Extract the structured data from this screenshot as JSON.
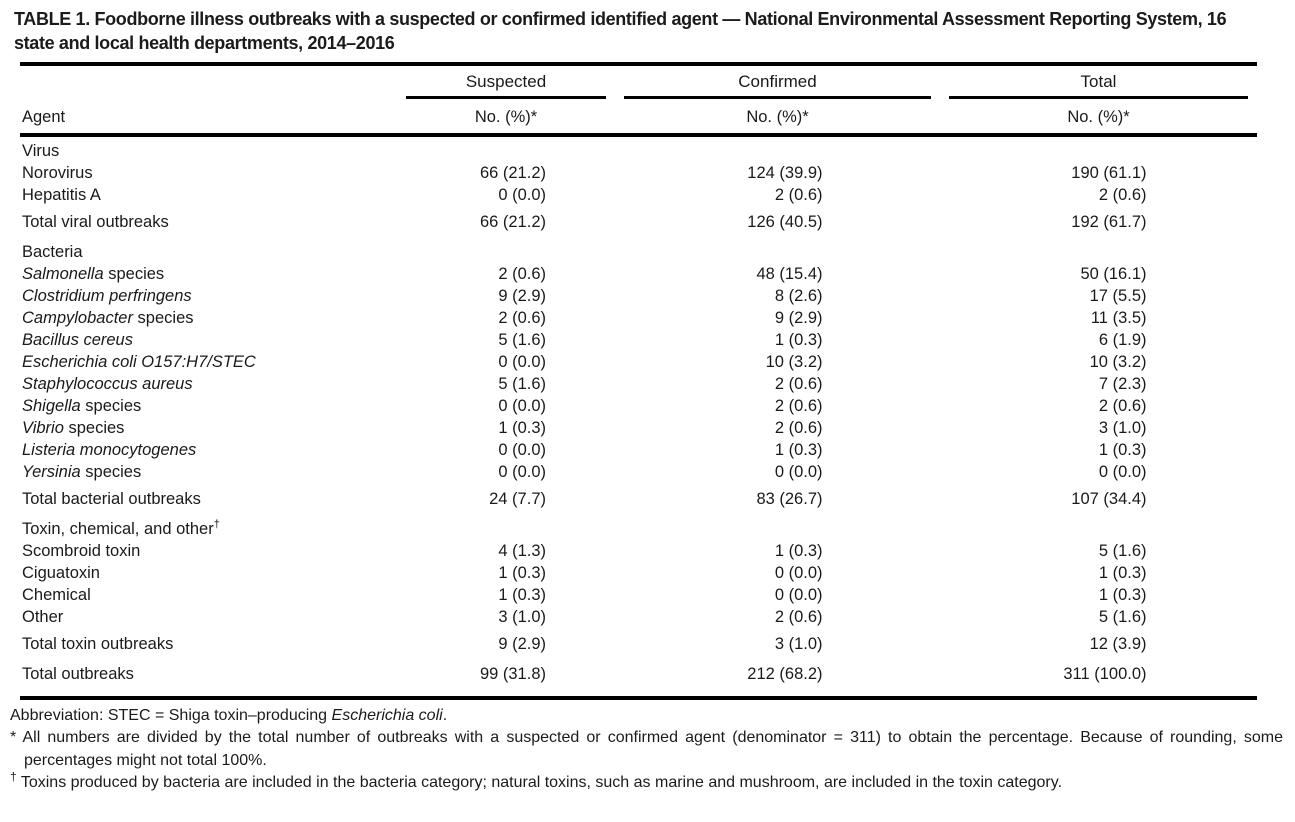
{
  "title": {
    "lines": [
      "TABLE 1. Foodborne illness outbreaks with a suspected or confirmed identified agent — National Environmental Assessment Reporting System, 16",
      "state and local health departments, 2014–2016"
    ]
  },
  "table": {
    "agent_header": "Agent",
    "columns": [
      "Suspected",
      "Confirmed",
      "Total"
    ],
    "sub_header": "No. (%)*",
    "rows": [
      {
        "type": "section",
        "italic": "",
        "text": "Virus",
        "sup": ""
      },
      {
        "type": "item",
        "italic": "",
        "text": "Norovirus",
        "suspected": "66 (21.2)",
        "confirmed": "124 (39.9)",
        "total": "190 (61.1)"
      },
      {
        "type": "item",
        "italic": "",
        "text": "Hepatitis A",
        "suspected": "0 (0.0)",
        "confirmed": "2 (0.6)",
        "total": "2 (0.6)"
      },
      {
        "type": "total",
        "italic": "",
        "text": "Total viral outbreaks",
        "suspected": "66 (21.2)",
        "confirmed": "126 (40.5)",
        "total": "192 (61.7)"
      },
      {
        "type": "section",
        "italic": "",
        "text": "Bacteria",
        "sup": ""
      },
      {
        "type": "item",
        "italic": "Salmonella",
        "text": " species",
        "suspected": "2 (0.6)",
        "confirmed": "48 (15.4)",
        "total": "50 (16.1)"
      },
      {
        "type": "item",
        "italic": "Clostridium perfringens",
        "text": "",
        "suspected": "9 (2.9)",
        "confirmed": "8 (2.6)",
        "total": "17 (5.5)"
      },
      {
        "type": "item",
        "italic": "Campylobacter",
        "text": " species",
        "suspected": "2 (0.6)",
        "confirmed": "9 (2.9)",
        "total": "11 (3.5)"
      },
      {
        "type": "item",
        "italic": "Bacillus cereus",
        "text": "",
        "suspected": "5 (1.6)",
        "confirmed": "1 (0.3)",
        "total": "6 (1.9)"
      },
      {
        "type": "item",
        "italic": "Escherichia coli O157:H7/STEC",
        "text": "",
        "suspected": "0 (0.0)",
        "confirmed": "10 (3.2)",
        "total": "10 (3.2)"
      },
      {
        "type": "item",
        "italic": "Staphylococcus aureus",
        "text": "",
        "suspected": "5 (1.6)",
        "confirmed": "2 (0.6)",
        "total": "7 (2.3)"
      },
      {
        "type": "item",
        "italic": "Shigella",
        "text": " species",
        "suspected": "0 (0.0)",
        "confirmed": "2 (0.6)",
        "total": "2 (0.6)"
      },
      {
        "type": "item",
        "italic": "Vibrio",
        "text": " species",
        "suspected": "1 (0.3)",
        "confirmed": "2 (0.6)",
        "total": "3 (1.0)"
      },
      {
        "type": "item",
        "italic": "Listeria monocytogenes",
        "text": "",
        "suspected": "0 (0.0)",
        "confirmed": "1 (0.3)",
        "total": "1 (0.3)"
      },
      {
        "type": "item",
        "italic": "Yersinia",
        "text": " species",
        "suspected": "0 (0.0)",
        "confirmed": "0 (0.0)",
        "total": "0 (0.0)"
      },
      {
        "type": "total",
        "italic": "",
        "text": "Total bacterial outbreaks",
        "suspected": "24 (7.7)",
        "confirmed": "83 (26.7)",
        "total": "107 (34.4)"
      },
      {
        "type": "section",
        "italic": "",
        "text": "Toxin, chemical, and other",
        "sup": "†"
      },
      {
        "type": "item",
        "italic": "",
        "text": "Scombroid toxin",
        "suspected": "4 (1.3)",
        "confirmed": "1 (0.3)",
        "total": "5 (1.6)"
      },
      {
        "type": "item",
        "italic": "",
        "text": "Ciguatoxin",
        "suspected": "1 (0.3)",
        "confirmed": "0 (0.0)",
        "total": "1 (0.3)"
      },
      {
        "type": "item",
        "italic": "",
        "text": "Chemical",
        "suspected": "1 (0.3)",
        "confirmed": "0 (0.0)",
        "total": "1 (0.3)"
      },
      {
        "type": "item",
        "italic": "",
        "text": "Other",
        "suspected": "3 (1.0)",
        "confirmed": "2 (0.6)",
        "total": "5 (1.6)"
      },
      {
        "type": "total",
        "italic": "",
        "text": "Total toxin outbreaks",
        "suspected": "9 (2.9)",
        "confirmed": "3 (1.0)",
        "total": "12 (3.9)"
      },
      {
        "type": "grand",
        "italic": "",
        "text": "Total outbreaks",
        "suspected": "99 (31.8)",
        "confirmed": "212 (68.2)",
        "total": "311 (100.0)"
      }
    ]
  },
  "footnotes": {
    "abbreviation": {
      "prefix": "Abbreviation: STEC = Shiga toxin–producing ",
      "italic": "Escherichia coli",
      "suffix": "."
    },
    "asterisk": {
      "marker": "*",
      "text": " All numbers are divided by the total number of outbreaks with a suspected or confirmed agent (denominator = 311) to obtain the percentage. Because of rounding, some percentages might not total 100%."
    },
    "dagger": {
      "marker": "†",
      "text": " Toxins produced by bacteria are included in the bacteria category; natural toxins, such as marine and mushroom, are included in the toxin category."
    }
  }
}
